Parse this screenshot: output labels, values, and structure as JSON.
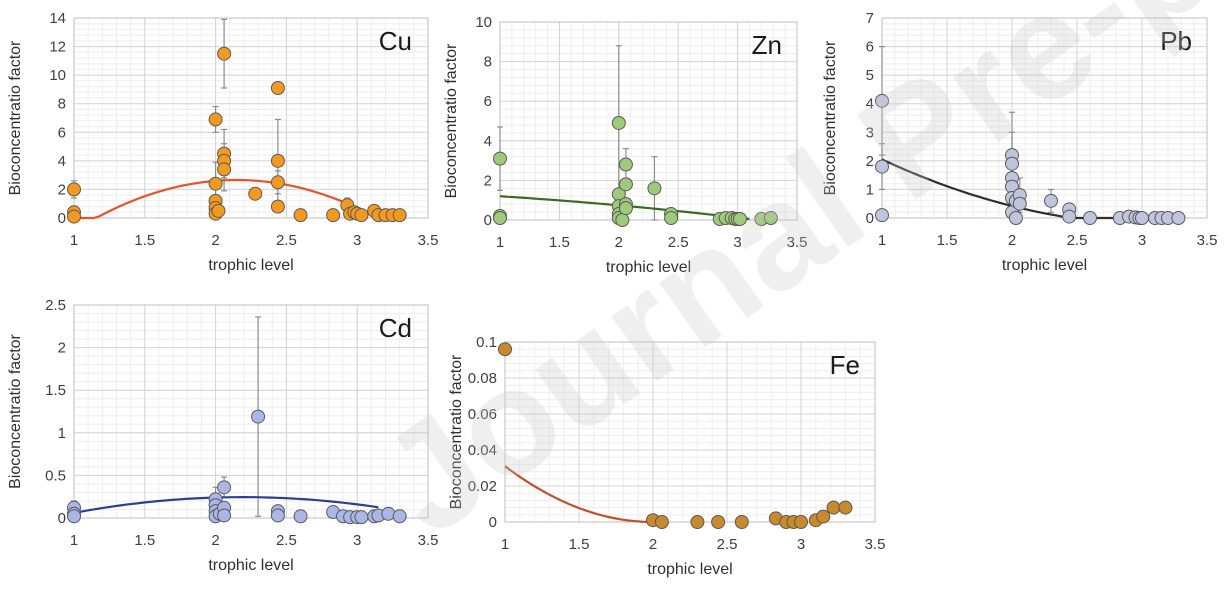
{
  "watermark": "Journal Pre-proof",
  "chart_data": [
    {
      "type": "scatter",
      "title": "Cu",
      "xlabel": "trophic level",
      "ylabel": "Bioconcentratio factor",
      "xlim": [
        1,
        3.5
      ],
      "ylim": [
        0,
        14
      ],
      "xticks": [
        "1",
        "1.5",
        "2",
        "2.5",
        "3",
        "3.5"
      ],
      "yticks": [
        "0",
        "2",
        "4",
        "6",
        "8",
        "10",
        "12",
        "14"
      ],
      "marker_color": "#F39A1E",
      "trend_color": "#E5532B",
      "grid": true,
      "points": [
        {
          "x": 1.0,
          "y": 2.0,
          "err": 0.6
        },
        {
          "x": 1.0,
          "y": 0.4
        },
        {
          "x": 1.0,
          "y": 0.1
        },
        {
          "x": 2.0,
          "y": 6.9,
          "err": 0.9
        },
        {
          "x": 2.0,
          "y": 2.4,
          "err": 1.5
        },
        {
          "x": 2.0,
          "y": 1.2
        },
        {
          "x": 2.0,
          "y": 0.7
        },
        {
          "x": 2.0,
          "y": 0.3
        },
        {
          "x": 2.02,
          "y": 0.5
        },
        {
          "x": 2.06,
          "y": 11.5,
          "err": 2.4
        },
        {
          "x": 2.06,
          "y": 4.5,
          "err": 1.7
        },
        {
          "x": 2.06,
          "y": 4.0,
          "err": 1.2
        },
        {
          "x": 2.06,
          "y": 3.4,
          "err": 1.5
        },
        {
          "x": 2.28,
          "y": 1.7
        },
        {
          "x": 2.44,
          "y": 9.1
        },
        {
          "x": 2.44,
          "y": 4.0,
          "err": 2.9
        },
        {
          "x": 2.44,
          "y": 2.5,
          "err": 0.8
        },
        {
          "x": 2.44,
          "y": 0.8
        },
        {
          "x": 2.6,
          "y": 0.2
        },
        {
          "x": 2.83,
          "y": 0.2
        },
        {
          "x": 2.93,
          "y": 0.9,
          "err": 0.5
        },
        {
          "x": 2.95,
          "y": 0.3
        },
        {
          "x": 2.98,
          "y": 0.4
        },
        {
          "x": 3.0,
          "y": 0.3
        },
        {
          "x": 3.03,
          "y": 0.2
        },
        {
          "x": 3.12,
          "y": 0.5
        },
        {
          "x": 3.15,
          "y": 0.2
        },
        {
          "x": 3.2,
          "y": 0.2
        },
        {
          "x": 3.25,
          "y": 0.2
        },
        {
          "x": 3.3,
          "y": 0.2
        }
      ],
      "trend": {
        "form": "quadratic",
        "a": -2.7,
        "b": 11.6,
        "c": -9.8,
        "x_range": [
          1,
          3.1
        ]
      }
    },
    {
      "type": "scatter",
      "title": "Zn",
      "xlabel": "trophic level",
      "ylabel": "Bioconcentratio factor",
      "xlim": [
        1,
        3.5
      ],
      "ylim": [
        0,
        10
      ],
      "xticks": [
        "1",
        "1.5",
        "2",
        "2.5",
        "3",
        "3.5"
      ],
      "yticks": [
        "0",
        "2",
        "4",
        "6",
        "8",
        "10"
      ],
      "marker_color": "#9DCB7A",
      "trend_color": "#3D6B24",
      "grid": true,
      "points": [
        {
          "x": 1.0,
          "y": 3.1,
          "err": 1.6
        },
        {
          "x": 1.0,
          "y": 0.2
        },
        {
          "x": 1.0,
          "y": 0.1
        },
        {
          "x": 2.0,
          "y": 4.9,
          "err": 3.9
        },
        {
          "x": 2.0,
          "y": 1.3
        },
        {
          "x": 2.0,
          "y": 0.7
        },
        {
          "x": 2.0,
          "y": 0.3
        },
        {
          "x": 2.0,
          "y": 0.1
        },
        {
          "x": 2.03,
          "y": 0.0
        },
        {
          "x": 2.06,
          "y": 2.8,
          "err": 0.8
        },
        {
          "x": 2.06,
          "y": 1.8
        },
        {
          "x": 2.06,
          "y": 0.8
        },
        {
          "x": 2.06,
          "y": 0.6
        },
        {
          "x": 2.3,
          "y": 1.6,
          "err": 1.6
        },
        {
          "x": 2.44,
          "y": 0.3
        },
        {
          "x": 2.44,
          "y": 0.1
        },
        {
          "x": 2.85,
          "y": 0.05
        },
        {
          "x": 2.9,
          "y": 0.1
        },
        {
          "x": 2.95,
          "y": 0.1
        },
        {
          "x": 2.98,
          "y": 0.05
        },
        {
          "x": 3.0,
          "y": 0.05
        },
        {
          "x": 3.02,
          "y": 0.05
        },
        {
          "x": 3.2,
          "y": 0.05
        },
        {
          "x": 3.28,
          "y": 0.1
        }
      ],
      "trend": {
        "form": "quadratic",
        "a": -0.08,
        "b": -0.22,
        "c": 1.5,
        "x_range": [
          1,
          3.1
        ]
      }
    },
    {
      "type": "scatter",
      "title": "Pb",
      "xlabel": "trophic level",
      "ylabel": "Bioconcentratio factor",
      "xlim": [
        1,
        3.5
      ],
      "ylim": [
        0,
        7
      ],
      "xticks": [
        "1",
        "1.5",
        "2",
        "2.5",
        "3",
        "3.5"
      ],
      "yticks": [
        "0",
        "1",
        "2",
        "3",
        "4",
        "5",
        "6",
        "7"
      ],
      "marker_color": "#BFC5DC",
      "trend_color": "#2E2E2E",
      "grid": true,
      "points": [
        {
          "x": 1.0,
          "y": 4.1,
          "err": 1.9
        },
        {
          "x": 1.0,
          "y": 1.8,
          "err": 0.8
        },
        {
          "x": 1.0,
          "y": 0.1
        },
        {
          "x": 2.0,
          "y": 2.2,
          "err": 1.5
        },
        {
          "x": 2.0,
          "y": 1.9,
          "err": 1.1
        },
        {
          "x": 2.0,
          "y": 1.4
        },
        {
          "x": 2.0,
          "y": 1.1
        },
        {
          "x": 2.0,
          "y": 0.7
        },
        {
          "x": 2.0,
          "y": 0.2
        },
        {
          "x": 2.03,
          "y": 0.6
        },
        {
          "x": 2.03,
          "y": 0.0
        },
        {
          "x": 2.06,
          "y": 0.8,
          "err": 0.6
        },
        {
          "x": 2.06,
          "y": 0.5
        },
        {
          "x": 2.3,
          "y": 0.6,
          "err": 0.4
        },
        {
          "x": 2.44,
          "y": 0.3
        },
        {
          "x": 2.44,
          "y": 0.05
        },
        {
          "x": 2.6,
          "y": 0.0
        },
        {
          "x": 2.83,
          "y": 0.0
        },
        {
          "x": 2.9,
          "y": 0.05
        },
        {
          "x": 2.95,
          "y": 0.02
        },
        {
          "x": 2.98,
          "y": 0.0
        },
        {
          "x": 3.0,
          "y": 0.0
        },
        {
          "x": 3.1,
          "y": 0.0
        },
        {
          "x": 3.15,
          "y": 0.0
        },
        {
          "x": 3.2,
          "y": 0.0
        },
        {
          "x": 3.28,
          "y": 0.0
        }
      ],
      "trend": {
        "form": "quadratic",
        "a": 0.49,
        "b": -3.1,
        "c": 4.66,
        "x_range": [
          1,
          3.02
        ]
      }
    },
    {
      "type": "scatter",
      "title": "Cd",
      "xlabel": "trophic level",
      "ylabel": "Bioconcentratio factor",
      "xlim": [
        1,
        3.5
      ],
      "ylim": [
        0,
        2.5
      ],
      "xticks": [
        "1",
        "1.5",
        "2",
        "2.5",
        "3",
        "3.5"
      ],
      "yticks": [
        "0",
        "0.5",
        "1",
        "1.5",
        "2",
        "2.5"
      ],
      "marker_color": "#A9B6E6",
      "trend_color": "#2F3F8F",
      "grid": true,
      "points": [
        {
          "x": 1.0,
          "y": 0.12,
          "err": 0.08
        },
        {
          "x": 1.0,
          "y": 0.05
        },
        {
          "x": 1.0,
          "y": 0.02
        },
        {
          "x": 2.0,
          "y": 0.22,
          "err": 0.14
        },
        {
          "x": 2.0,
          "y": 0.15
        },
        {
          "x": 2.0,
          "y": 0.08
        },
        {
          "x": 2.0,
          "y": 0.02
        },
        {
          "x": 2.03,
          "y": 0.05
        },
        {
          "x": 2.06,
          "y": 0.36,
          "err": 0.12
        },
        {
          "x": 2.06,
          "y": 0.12
        },
        {
          "x": 2.06,
          "y": 0.03
        },
        {
          "x": 2.3,
          "y": 1.19,
          "err": 1.17
        },
        {
          "x": 2.44,
          "y": 0.08
        },
        {
          "x": 2.44,
          "y": 0.03
        },
        {
          "x": 2.6,
          "y": 0.02
        },
        {
          "x": 2.83,
          "y": 0.07
        },
        {
          "x": 2.9,
          "y": 0.02
        },
        {
          "x": 2.95,
          "y": 0.01
        },
        {
          "x": 3.0,
          "y": 0.01
        },
        {
          "x": 3.03,
          "y": 0.01
        },
        {
          "x": 3.12,
          "y": 0.02
        },
        {
          "x": 3.15,
          "y": 0.03
        },
        {
          "x": 3.22,
          "y": 0.05
        },
        {
          "x": 3.3,
          "y": 0.02
        }
      ],
      "trend": {
        "form": "quadratic",
        "a": -0.13,
        "b": 0.57,
        "c": -0.38,
        "x_range": [
          1,
          3.15
        ]
      }
    },
    {
      "type": "scatter",
      "title": "Fe",
      "xlabel": "trophic level",
      "ylabel": "Bioconcentratio factor",
      "xlim": [
        1,
        3.5
      ],
      "ylim": [
        0,
        0.1
      ],
      "xticks": [
        "1",
        "1.5",
        "2",
        "2.5",
        "3",
        "3.5"
      ],
      "yticks": [
        "0",
        "0.02",
        "0.04",
        "0.06",
        "0.08",
        "0.1"
      ],
      "marker_color": "#C98A2B",
      "trend_color": "#C0502A",
      "grid": true,
      "points": [
        {
          "x": 1.0,
          "y": 0.096
        },
        {
          "x": 2.0,
          "y": 0.001
        },
        {
          "x": 2.06,
          "y": 0.0
        },
        {
          "x": 2.3,
          "y": 0.0
        },
        {
          "x": 2.44,
          "y": 0.0
        },
        {
          "x": 2.6,
          "y": 0.0
        },
        {
          "x": 2.83,
          "y": 0.002
        },
        {
          "x": 2.9,
          "y": 0.0
        },
        {
          "x": 2.95,
          "y": 0.0
        },
        {
          "x": 3.0,
          "y": 0.0
        },
        {
          "x": 3.1,
          "y": 0.001
        },
        {
          "x": 3.15,
          "y": 0.003
        },
        {
          "x": 3.22,
          "y": 0.008
        },
        {
          "x": 3.3,
          "y": 0.008
        }
      ],
      "trend": {
        "form": "quadratic",
        "a": 0.031,
        "b": -0.124,
        "c": 0.124,
        "x_range": [
          1,
          2.0
        ]
      }
    }
  ]
}
